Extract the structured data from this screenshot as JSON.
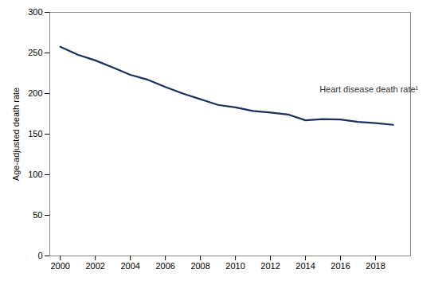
{
  "chart_data": {
    "type": "line",
    "x": [
      2000,
      2001,
      2002,
      2003,
      2004,
      2005,
      2006,
      2007,
      2008,
      2009,
      2010,
      2011,
      2012,
      2013,
      2014,
      2015,
      2016,
      2017,
      2018,
      2019
    ],
    "values": [
      257.6,
      247.8,
      240.8,
      232.1,
      223.0,
      217.0,
      208.0,
      200.0,
      193.0,
      186.0,
      183.0,
      178.5,
      176.5,
      174.2,
      167.0,
      168.5,
      168.0,
      165.0,
      163.6,
      161.5
    ],
    "color": "#1b2f5b",
    "ylabel": "Age-adjusted death rate",
    "xlim": [
      1999.4,
      2020.0
    ],
    "xticks": [
      2000,
      2002,
      2004,
      2006,
      2008,
      2010,
      2012,
      2014,
      2016,
      2018
    ],
    "ylim": [
      0,
      300
    ],
    "yticks": [
      0,
      50,
      100,
      150,
      200,
      250,
      300
    ],
    "annotations": [
      {
        "text": "Heart disease death rate¹",
        "x": 2014.8,
        "y": 205
      }
    ],
    "grid": false
  }
}
